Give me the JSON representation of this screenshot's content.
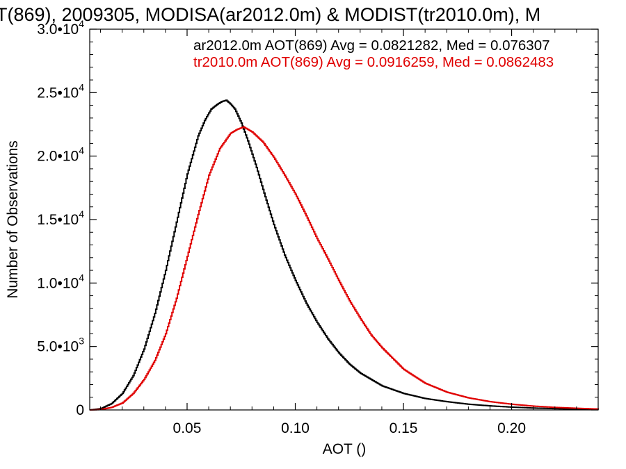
{
  "chart_data": {
    "type": "line",
    "title": "T(869), 2009305, MODISA(ar2012.0m) & MODIST(tr2010.0m), M",
    "xlabel": "AOT ()",
    "ylabel": "Number of Observations",
    "xlim": [
      0.005,
      0.24
    ],
    "ylim": [
      0,
      30000
    ],
    "x_ticks": [
      {
        "value": 0.05,
        "label": "0.05"
      },
      {
        "value": 0.1,
        "label": "0.10"
      },
      {
        "value": 0.15,
        "label": "0.15"
      },
      {
        "value": 0.2,
        "label": "0.20"
      }
    ],
    "y_ticks": [
      {
        "value": 0,
        "mantissa": "0",
        "exponent": ""
      },
      {
        "value": 5000,
        "mantissa": "5.0",
        "exponent": "3"
      },
      {
        "value": 10000,
        "mantissa": "1.0",
        "exponent": "4"
      },
      {
        "value": 15000,
        "mantissa": "1.5",
        "exponent": "4"
      },
      {
        "value": 20000,
        "mantissa": "2.0",
        "exponent": "4"
      },
      {
        "value": 25000,
        "mantissa": "2.5",
        "exponent": "4"
      },
      {
        "value": 30000,
        "mantissa": "3.0",
        "exponent": "4"
      }
    ],
    "grid": false,
    "legend_position": "top-right",
    "series": [
      {
        "legend": "ar2012.0m AOT(869) Avg = 0.0821282, Med = 0.076307",
        "color": "#000000",
        "x": [
          0.005,
          0.01,
          0.015,
          0.02,
          0.025,
          0.03,
          0.035,
          0.04,
          0.045,
          0.05,
          0.055,
          0.058,
          0.061,
          0.064,
          0.066,
          0.068,
          0.07,
          0.072,
          0.075,
          0.078,
          0.082,
          0.086,
          0.09,
          0.095,
          0.1,
          0.105,
          0.11,
          0.115,
          0.12,
          0.125,
          0.13,
          0.14,
          0.15,
          0.16,
          0.17,
          0.18,
          0.19,
          0.2,
          0.21,
          0.22,
          0.23,
          0.24
        ],
        "y": [
          0,
          100,
          500,
          1300,
          2700,
          4800,
          7600,
          11000,
          14800,
          18600,
          21600,
          22800,
          23700,
          24100,
          24300,
          24400,
          24100,
          23700,
          22600,
          21200,
          19100,
          16800,
          14600,
          12200,
          10200,
          8400,
          6900,
          5600,
          4500,
          3600,
          2900,
          1900,
          1300,
          900,
          650,
          450,
          320,
          220,
          150,
          100,
          60,
          30
        ]
      },
      {
        "legend": "tr2010.0m AOT(869) Avg = 0.0916259, Med = 0.0862483",
        "color": "#e00000",
        "x": [
          0.005,
          0.01,
          0.015,
          0.02,
          0.025,
          0.03,
          0.035,
          0.04,
          0.045,
          0.05,
          0.055,
          0.06,
          0.065,
          0.07,
          0.073,
          0.076,
          0.078,
          0.08,
          0.085,
          0.09,
          0.095,
          0.1,
          0.105,
          0.11,
          0.115,
          0.12,
          0.125,
          0.13,
          0.135,
          0.14,
          0.15,
          0.16,
          0.17,
          0.18,
          0.19,
          0.2,
          0.21,
          0.22,
          0.23,
          0.24
        ],
        "y": [
          0,
          30,
          200,
          550,
          1300,
          2400,
          3900,
          6000,
          8800,
          12100,
          15400,
          18500,
          20600,
          21800,
          22100,
          22300,
          22100,
          21900,
          21100,
          19900,
          18500,
          17000,
          15300,
          13500,
          11900,
          10200,
          8600,
          7200,
          5900,
          4900,
          3200,
          2100,
          1400,
          950,
          650,
          450,
          300,
          200,
          130,
          70
        ]
      }
    ]
  }
}
